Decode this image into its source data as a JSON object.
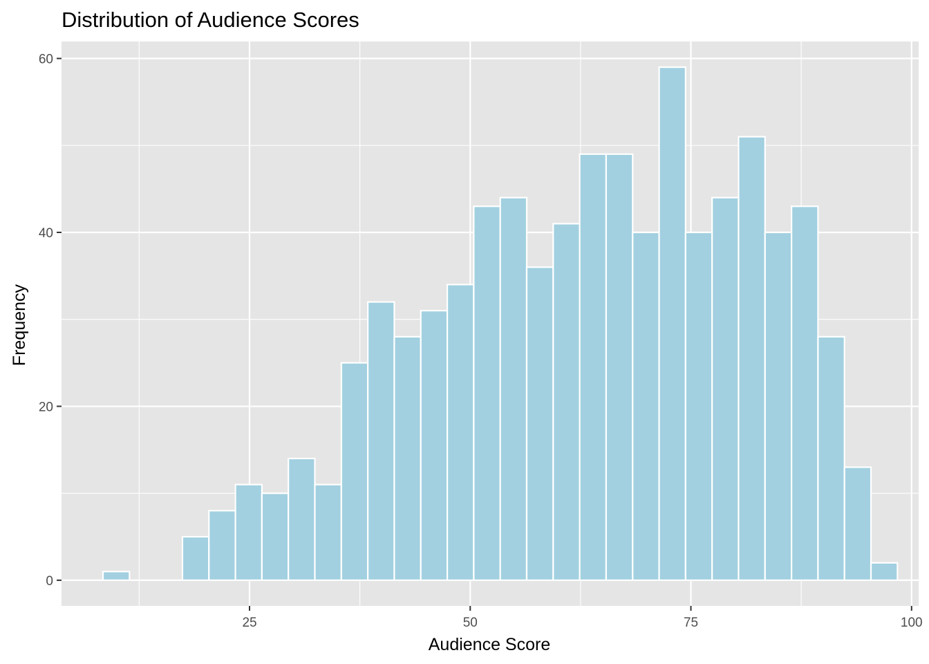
{
  "chart_data": {
    "type": "bar",
    "title": "Distribution of Audience Scores",
    "xlabel": "Audience Score",
    "ylabel": "Frequency",
    "xlim": [
      3.7,
      100.8
    ],
    "ylim": [
      -2.95,
      61.95
    ],
    "x_ticks": [
      25,
      50,
      75,
      100
    ],
    "y_ticks": [
      0,
      20,
      40,
      60
    ],
    "x_tick_labels": [
      "25",
      "50",
      "75",
      "100"
    ],
    "y_tick_labels": [
      "0",
      "20",
      "40",
      "60"
    ],
    "bin_width": 3.0,
    "bins": [
      {
        "x0": 8.4,
        "x1": 11.4,
        "count": 1
      },
      {
        "x0": 11.4,
        "x1": 14.4,
        "count": 0
      },
      {
        "x0": 14.4,
        "x1": 17.4,
        "count": 0
      },
      {
        "x0": 17.4,
        "x1": 20.4,
        "count": 5
      },
      {
        "x0": 20.4,
        "x1": 23.4,
        "count": 8
      },
      {
        "x0": 23.4,
        "x1": 26.4,
        "count": 11
      },
      {
        "x0": 26.4,
        "x1": 29.4,
        "count": 10
      },
      {
        "x0": 29.4,
        "x1": 32.4,
        "count": 14
      },
      {
        "x0": 32.4,
        "x1": 35.4,
        "count": 11
      },
      {
        "x0": 35.4,
        "x1": 38.4,
        "count": 25
      },
      {
        "x0": 38.4,
        "x1": 41.4,
        "count": 32
      },
      {
        "x0": 41.4,
        "x1": 44.4,
        "count": 28
      },
      {
        "x0": 44.4,
        "x1": 47.4,
        "count": 31
      },
      {
        "x0": 47.4,
        "x1": 50.4,
        "count": 34
      },
      {
        "x0": 50.4,
        "x1": 53.4,
        "count": 43
      },
      {
        "x0": 53.4,
        "x1": 56.4,
        "count": 44
      },
      {
        "x0": 56.4,
        "x1": 59.4,
        "count": 36
      },
      {
        "x0": 59.4,
        "x1": 62.4,
        "count": 41
      },
      {
        "x0": 62.4,
        "x1": 65.4,
        "count": 49
      },
      {
        "x0": 65.4,
        "x1": 68.4,
        "count": 49
      },
      {
        "x0": 68.4,
        "x1": 71.4,
        "count": 40
      },
      {
        "x0": 71.4,
        "x1": 74.4,
        "count": 59
      },
      {
        "x0": 74.4,
        "x1": 77.4,
        "count": 40
      },
      {
        "x0": 77.4,
        "x1": 80.4,
        "count": 44
      },
      {
        "x0": 80.4,
        "x1": 83.4,
        "count": 51
      },
      {
        "x0": 83.4,
        "x1": 86.4,
        "count": 40
      },
      {
        "x0": 86.4,
        "x1": 89.4,
        "count": 43
      },
      {
        "x0": 89.4,
        "x1": 92.4,
        "count": 28
      },
      {
        "x0": 92.4,
        "x1": 95.4,
        "count": 13
      },
      {
        "x0": 95.4,
        "x1": 98.4,
        "count": 2
      }
    ],
    "grid": true,
    "colors": {
      "panel_background": "#e5e5e5",
      "grid": "#ffffff",
      "bar_fill": "#a2d0e0",
      "bar_outline": "#ffffff",
      "tick_text": "#4d4d4d",
      "tick_mark": "#333333"
    }
  }
}
